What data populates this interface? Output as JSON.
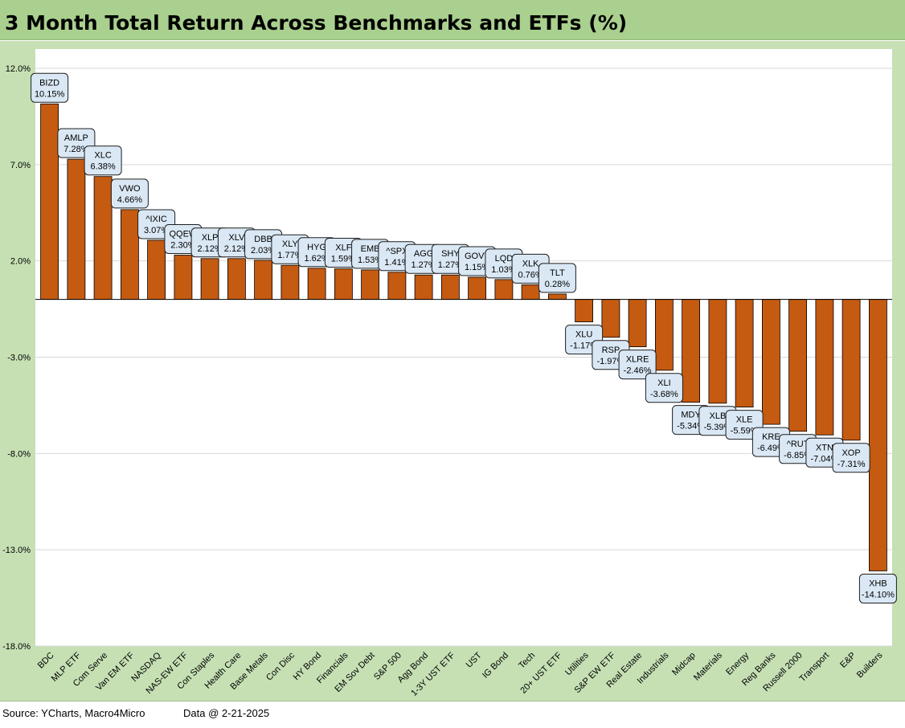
{
  "title": "3 Month Total Return Across Benchmarks and ETFs (%)",
  "footer": {
    "source": "Source: YCharts, Macro4Micro",
    "date": "Data @ 2-21-2025"
  },
  "colors": {
    "bar": "#c55a11",
    "bar_outline": "#000000",
    "plot_bg": "#ffffff",
    "frame_bg": "#c6e0b4",
    "title_bg": "#a9d08e",
    "gridline": "#d9d9d9",
    "callout_fill": "#dae8f5",
    "callout_stroke": "#1f1f1f"
  },
  "chart_data": {
    "type": "bar",
    "title": "3 Month Total Return Across Benchmarks and ETFs (%)",
    "xlabel": "",
    "ylabel": "",
    "ylim": [
      -18,
      12
    ],
    "yticks": [
      12,
      7,
      2,
      -3,
      -8,
      -13,
      -18
    ],
    "ytick_labels": [
      "12.0%",
      "7.0%",
      "2.0%",
      "-3.0%",
      "-8.0%",
      "-13.0%",
      "-18.0%"
    ],
    "grid": true,
    "legend": "none",
    "categories": [
      "BDC",
      "MLP ETF",
      "Com Serve",
      "Van EM ETF",
      "NASDAQ",
      "NAS-EW ETF",
      "Con Staples",
      "Health Care",
      "Base Metals",
      "Con Disc",
      "HY Bond",
      "Financials",
      "EM Sov Debt",
      "S&P 500",
      "Agg Bond",
      "1-3Y UST ETF",
      "UST",
      "IG Bond",
      "Tech",
      "20+ UST ETF",
      "Utilities",
      "S&P EW ETF",
      "Real Estate",
      "Industrials",
      "Midcap",
      "Materials",
      "Energy",
      "Reg Banks",
      "Russell 2000",
      "Transport",
      "E&P",
      "Builders"
    ],
    "tickers": [
      "BIZD",
      "AMLP",
      "XLC",
      "VWO",
      "^IXIC",
      "QQEW",
      "XLP",
      "XLV",
      "DBB",
      "XLY",
      "HYG",
      "XLF",
      "EMB",
      "^SPX",
      "AGG",
      "SHY",
      "GOVT",
      "LQD",
      "XLK",
      "TLT",
      "XLU",
      "RSP",
      "XLRE",
      "XLI",
      "MDY",
      "XLB",
      "XLE",
      "KRE",
      "^RUT",
      "XTN",
      "XOP",
      "XHB"
    ],
    "value_labels": [
      "10.15%",
      "7.28%",
      "6.38%",
      "4.66%",
      "3.07%",
      "2.30%",
      "2.12%",
      "2.12%",
      "2.03%",
      "1.77%",
      "1.62%",
      "1.59%",
      "1.53%",
      "1.41%",
      "1.27%",
      "1.27%",
      "1.15%",
      "1.03%",
      "0.76%",
      "0.28%",
      "-1.17%",
      "-1.97%",
      "-2.46%",
      "-3.68%",
      "-5.34%",
      "-5.39%",
      "-5.59%",
      "-6.49%",
      "-6.85%",
      "-7.04%",
      "-7.31%",
      "-14.10%"
    ],
    "values": [
      10.15,
      7.28,
      6.38,
      4.66,
      3.07,
      2.3,
      2.12,
      2.12,
      2.03,
      1.77,
      1.62,
      1.59,
      1.53,
      1.41,
      1.27,
      1.27,
      1.15,
      1.03,
      0.76,
      0.28,
      -1.17,
      -1.97,
      -2.46,
      -3.68,
      -5.34,
      -5.39,
      -5.59,
      -6.49,
      -6.85,
      -7.04,
      -7.31,
      -14.1
    ]
  }
}
